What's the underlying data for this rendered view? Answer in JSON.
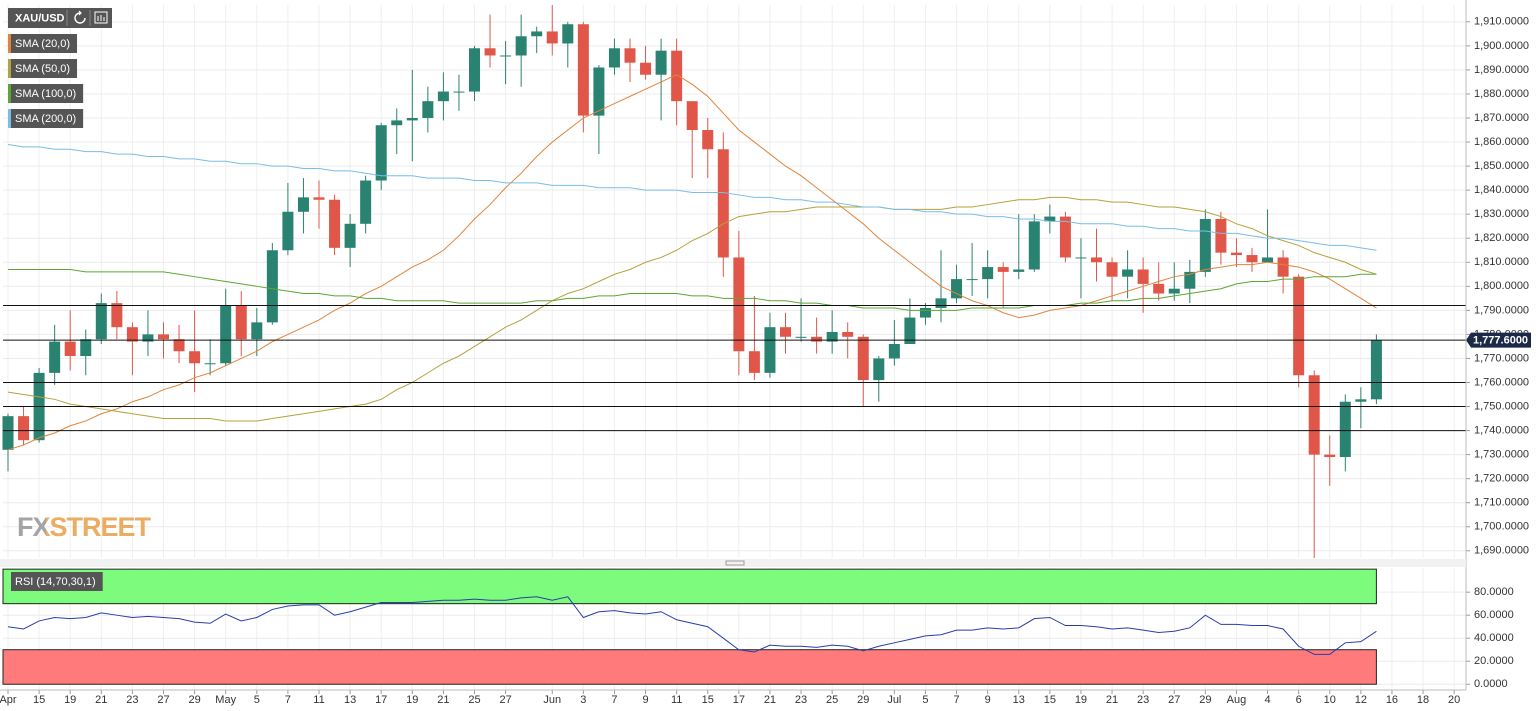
{
  "chart_data": [
    {
      "type": "candlestick",
      "title": "XAU/USD",
      "watermark": "FXSTREET",
      "grid": true,
      "up_color": "#2a8270",
      "down_color": "#e0574a",
      "categories": [
        "Apr",
        null,
        "15",
        null,
        "19",
        null,
        "21",
        null,
        "23",
        null,
        "27",
        null,
        "29",
        null,
        "May",
        null,
        "5",
        null,
        "7",
        null,
        "11",
        null,
        "13",
        null,
        "17",
        null,
        "19",
        null,
        "21",
        null,
        "25",
        null,
        "27",
        null,
        null,
        "Jun",
        null,
        "3",
        null,
        "7",
        null,
        "9",
        null,
        "11",
        null,
        "15",
        null,
        "17",
        null,
        "21",
        null,
        "23",
        null,
        "25",
        null,
        "29",
        null,
        "Jul",
        null,
        "5",
        null,
        "7",
        null,
        "9",
        null,
        "13",
        null,
        "15",
        null,
        "19",
        null,
        "21",
        null,
        "23",
        null,
        "27",
        null,
        "29",
        null,
        "Aug",
        null,
        "4",
        null,
        "6",
        null,
        "10",
        null,
        "12",
        null,
        "16",
        null,
        "18",
        null,
        "20"
      ],
      "open": [
        1732,
        1746,
        1736,
        1764,
        1777,
        1771,
        1778,
        1793,
        1783,
        1777,
        1780,
        1778,
        1773,
        1768,
        1768,
        1792,
        1778,
        1785,
        1815,
        1831,
        1837,
        1836,
        1816,
        1826,
        1844,
        1867,
        1869,
        1870,
        1877,
        1881,
        1881,
        1899,
        1896,
        1896,
        1904,
        1906,
        1901,
        1909,
        1871,
        1891,
        1899,
        1893,
        1888,
        1898,
        1877,
        1865,
        1857,
        1812,
        1773,
        1764,
        1783,
        1779,
        1779,
        1777,
        1781,
        1779,
        1761,
        1770,
        1776,
        1787,
        1791,
        1795,
        1803,
        1803,
        1808,
        1806,
        1807,
        1827,
        1829,
        1812,
        1812,
        1810,
        1804,
        1807,
        1801,
        1797,
        1799,
        1806,
        1828,
        1814,
        1813,
        1810,
        1812,
        1804,
        1763,
        1730,
        1729,
        1752,
        1753,
        null,
        null,
        null,
        null,
        null
      ],
      "high": [
        1747,
        1750,
        1766,
        1784,
        1790,
        1782,
        1797,
        1798,
        1785,
        1790,
        1785,
        1784,
        1790,
        1778,
        1799,
        1798,
        1791,
        1818,
        1843,
        1845,
        1844,
        1838,
        1830,
        1846,
        1868,
        1874,
        1890,
        1883,
        1889,
        1888,
        1900,
        1913,
        1902,
        1913,
        1908,
        1917,
        1910,
        1910,
        1892,
        1903,
        1903,
        1900,
        1903,
        1903,
        1877,
        1870,
        1864,
        1823,
        1796,
        1789,
        1789,
        1795,
        1787,
        1790,
        1785,
        1780,
        1771,
        1786,
        1795,
        1793,
        1815,
        1809,
        1818,
        1815,
        1810,
        1830,
        1830,
        1834,
        1831,
        1820,
        1824,
        1812,
        1815,
        1812,
        1810,
        1810,
        1811,
        1832,
        1831,
        1820,
        1816,
        1832,
        1815,
        1805,
        1765,
        1738,
        1755,
        1758,
        1780,
        null,
        null,
        null,
        null,
        null
      ],
      "low": [
        1723,
        1734,
        1735,
        1759,
        1765,
        1763,
        1776,
        1778,
        1763,
        1771,
        1770,
        1768,
        1756,
        1763,
        1767,
        1771,
        1771,
        1784,
        1813,
        1822,
        1824,
        1813,
        1808,
        1822,
        1840,
        1855,
        1852,
        1864,
        1869,
        1873,
        1877,
        1891,
        1884,
        1883,
        1897,
        1896,
        1891,
        1864,
        1855,
        1888,
        1885,
        1886,
        1869,
        1867,
        1845,
        1845,
        1804,
        1763,
        1761,
        1762,
        1772,
        1777,
        1772,
        1772,
        1770,
        1750,
        1752,
        1767,
        1776,
        1784,
        1785,
        1793,
        1796,
        1795,
        1791,
        1803,
        1806,
        1822,
        1810,
        1795,
        1802,
        1794,
        1795,
        1789,
        1794,
        1794,
        1793,
        1804,
        1809,
        1808,
        1806,
        1810,
        1797,
        1758,
        1687,
        1717,
        1723,
        1741,
        1751,
        null,
        null,
        null,
        null,
        null
      ],
      "close": [
        1746,
        1736,
        1764,
        1777,
        1771,
        1778,
        1793,
        1783,
        1777,
        1780,
        1778,
        1773,
        1768,
        1768,
        1792,
        1778,
        1785,
        1815,
        1831,
        1837,
        1836,
        1816,
        1826,
        1844,
        1867,
        1869,
        1870,
        1877,
        1881,
        1881,
        1899,
        1896,
        1896,
        1904,
        1906,
        1901,
        1909,
        1871,
        1891,
        1899,
        1893,
        1888,
        1898,
        1877,
        1865,
        1857,
        1812,
        1773,
        1764,
        1783,
        1779,
        1779,
        1777,
        1781,
        1779,
        1761,
        1770,
        1776,
        1787,
        1791,
        1795,
        1803,
        1803,
        1808,
        1806,
        1807,
        1827,
        1829,
        1812,
        1812,
        1810,
        1804,
        1807,
        1801,
        1797,
        1799,
        1806,
        1828,
        1814,
        1813,
        1810,
        1812,
        1804,
        1763,
        1730,
        1729,
        1752,
        1753,
        1777.6,
        null,
        null,
        null,
        null,
        null
      ],
      "series": [
        {
          "name": "SMA (20,0)",
          "color": "#e0843c",
          "values": [
            1732,
            1734,
            1737,
            1739,
            1742,
            1744,
            1747,
            1749,
            1752,
            1754,
            1757,
            1759,
            1762,
            1764,
            1767,
            1770,
            1773,
            1777,
            1780,
            1783,
            1786,
            1790,
            1793,
            1797,
            1800,
            1804,
            1808,
            1811,
            1815,
            1821,
            1828,
            1834,
            1841,
            1847,
            1854,
            1860,
            1865,
            1870,
            1873,
            1876,
            1879,
            1882,
            1885,
            1888,
            1884,
            1879,
            1872,
            1865,
            1860,
            1855,
            1850,
            1846,
            1841,
            1836,
            1831,
            1826,
            1820,
            1815,
            1810,
            1805,
            1800,
            1797,
            1794,
            1792,
            1789,
            1787,
            1788,
            1790,
            1791,
            1792,
            1794,
            1796,
            1798,
            1800,
            1802,
            1804,
            1805,
            1807,
            1808,
            1809,
            1809,
            1810,
            1809,
            1808,
            1806,
            1803,
            1799,
            1795,
            1791,
            null,
            null,
            null,
            null,
            null
          ]
        },
        {
          "name": "SMA (50,0)",
          "color": "#b4a23c",
          "values": [
            1756,
            1755,
            1754,
            1753,
            1751,
            1750,
            1749,
            1748,
            1747,
            1746,
            1745,
            1745,
            1745,
            1745,
            1744,
            1744,
            1744,
            1745,
            1746,
            1747,
            1748,
            1749,
            1750,
            1751,
            1753,
            1757,
            1760,
            1764,
            1768,
            1771,
            1775,
            1779,
            1783,
            1786,
            1790,
            1794,
            1797,
            1799,
            1802,
            1805,
            1807,
            1810,
            1812,
            1815,
            1819,
            1822,
            1826,
            1829,
            1830,
            1831,
            1831,
            1832,
            1833,
            1833,
            1833,
            1833,
            1833,
            1832,
            1832,
            1832,
            1832,
            1833,
            1833,
            1834,
            1835,
            1836,
            1836,
            1837,
            1837,
            1836,
            1836,
            1835,
            1835,
            1834,
            1833,
            1833,
            1832,
            1831,
            1829,
            1826,
            1824,
            1821,
            1819,
            1817,
            1814,
            1812,
            1810,
            1807,
            1805,
            null,
            null,
            null,
            null,
            null
          ]
        },
        {
          "name": "SMA (100,0)",
          "color": "#5aa832",
          "values": [
            1807,
            1807,
            1807,
            1807,
            1807,
            1806,
            1806,
            1806,
            1806,
            1806,
            1806,
            1805,
            1804,
            1803,
            1802,
            1801,
            1800,
            1799,
            1798,
            1797,
            1797,
            1796,
            1796,
            1795,
            1795,
            1794,
            1794,
            1794,
            1794,
            1793,
            1793,
            1793,
            1793,
            1793,
            1794,
            1794,
            1795,
            1795,
            1796,
            1796,
            1797,
            1797,
            1797,
            1797,
            1796,
            1796,
            1795,
            1795,
            1795,
            1794,
            1794,
            1793,
            1793,
            1792,
            1792,
            1791,
            1791,
            1791,
            1790,
            1790,
            1790,
            1790,
            1791,
            1791,
            1791,
            1791,
            1792,
            1792,
            1792,
            1793,
            1793,
            1794,
            1794,
            1795,
            1795,
            1796,
            1797,
            1798,
            1799,
            1801,
            1802,
            1802,
            1803,
            1803,
            1804,
            1804,
            1804,
            1805,
            1805,
            null,
            null,
            null,
            null,
            null
          ]
        },
        {
          "name": "SMA (200,0)",
          "color": "#79bde8",
          "values": [
            1859,
            1858,
            1858,
            1857,
            1857,
            1856,
            1856,
            1855,
            1855,
            1854,
            1854,
            1853,
            1853,
            1852,
            1852,
            1851,
            1851,
            1850,
            1850,
            1849,
            1849,
            1848,
            1848,
            1847,
            1846,
            1846,
            1846,
            1845,
            1845,
            1845,
            1844,
            1844,
            1843,
            1843,
            1843,
            1842,
            1842,
            1842,
            1841,
            1841,
            1841,
            1840,
            1840,
            1840,
            1839,
            1839,
            1839,
            1838,
            1837,
            1837,
            1836,
            1836,
            1835,
            1835,
            1834,
            1833,
            1833,
            1832,
            1832,
            1831,
            1831,
            1830,
            1830,
            1829,
            1829,
            1828,
            1828,
            1827,
            1827,
            1826,
            1826,
            1826,
            1825,
            1825,
            1824,
            1824,
            1823,
            1823,
            1822,
            1822,
            1821,
            1820,
            1820,
            1819,
            1818,
            1817,
            1817,
            1816,
            1815,
            null,
            null,
            null,
            null,
            null
          ]
        }
      ],
      "hlines": [
        1792,
        1760,
        1750,
        1740
      ],
      "last_price": {
        "value": 1777.6,
        "label": "1,777.6000"
      },
      "ylim": [
        1687,
        1917
      ],
      "yticks": [
        {
          "value": 1690,
          "label": "1,690.0000"
        },
        {
          "value": 1700,
          "label": "1,700.0000"
        },
        {
          "value": 1710,
          "label": "1,710.0000"
        },
        {
          "value": 1720,
          "label": "1,720.0000"
        },
        {
          "value": 1730,
          "label": "1,730.0000"
        },
        {
          "value": 1740,
          "label": "1,740.0000"
        },
        {
          "value": 1750,
          "label": "1,750.0000"
        },
        {
          "value": 1760,
          "label": "1,760.0000"
        },
        {
          "value": 1770,
          "label": "1,770.0000"
        },
        {
          "value": 1780,
          "label": "1,780.0000"
        },
        {
          "value": 1790,
          "label": "1,790.0000"
        },
        {
          "value": 1800,
          "label": "1,800.0000"
        },
        {
          "value": 1810,
          "label": "1,810.0000"
        },
        {
          "value": 1820,
          "label": "1,820.0000"
        },
        {
          "value": 1830,
          "label": "1,830.0000"
        },
        {
          "value": 1840,
          "label": "1,840.0000"
        },
        {
          "value": 1850,
          "label": "1,850.0000"
        },
        {
          "value": 1860,
          "label": "1,860.0000"
        },
        {
          "value": 1870,
          "label": "1,870.0000"
        },
        {
          "value": 1880,
          "label": "1,880.0000"
        },
        {
          "value": 1890,
          "label": "1,890.0000"
        },
        {
          "value": 1900,
          "label": "1,900.0000"
        },
        {
          "value": 1910,
          "label": "1,910.0000"
        }
      ]
    },
    {
      "type": "line",
      "grid": true,
      "series": [
        {
          "name": "RSI (14,70,30,1)",
          "color": "#2a3ea8",
          "values": [
            50,
            48,
            55,
            58,
            57,
            58,
            62,
            60,
            58,
            59,
            58,
            57,
            54,
            53,
            61,
            55,
            58,
            65,
            68,
            69,
            69,
            60,
            63,
            67,
            71,
            71,
            71,
            72,
            73,
            73,
            74,
            73,
            73,
            75,
            76,
            73,
            76,
            58,
            63,
            64,
            62,
            61,
            63,
            56,
            53,
            50,
            40,
            30,
            28,
            34,
            33,
            33,
            32,
            34,
            33,
            29,
            33,
            36,
            39,
            42,
            43,
            47,
            47,
            49,
            48,
            49,
            57,
            58,
            51,
            51,
            50,
            48,
            49,
            47,
            45,
            46,
            49,
            60,
            52,
            52,
            51,
            51,
            48,
            33,
            26,
            26,
            36,
            37,
            46,
            null,
            null,
            null,
            null,
            null
          ]
        }
      ],
      "zones": [
        {
          "from": 70,
          "to": 100,
          "color": "#7dfb7d"
        },
        {
          "from": 0,
          "to": 30,
          "color": "#ff7b7b"
        }
      ],
      "ylim": [
        -5,
        101
      ],
      "yticks": [
        {
          "value": 0,
          "label": "0.0000"
        },
        {
          "value": 20,
          "label": "20.0000"
        },
        {
          "value": 40,
          "label": "40.0000"
        },
        {
          "value": 60,
          "label": "60.0000"
        },
        {
          "value": 80,
          "label": "80.0000"
        }
      ]
    }
  ]
}
